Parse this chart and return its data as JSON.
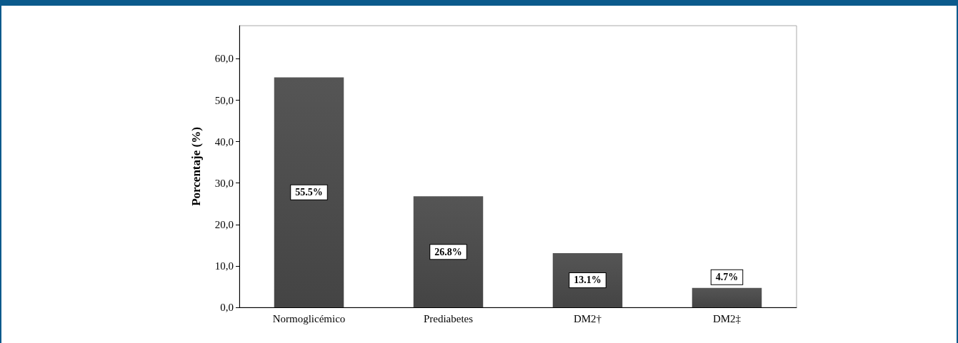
{
  "chart_data": {
    "type": "bar",
    "ylabel": "Porcentaje (%)",
    "categories": [
      "Normoglicémico",
      "Prediabetes",
      "DM2†",
      "DM2‡"
    ],
    "values": [
      55.5,
      26.8,
      13.1,
      4.7
    ],
    "value_labels": [
      "55.5%",
      "26.8%",
      "13.1%",
      "4.7%"
    ],
    "color": "#444444",
    "ylim": [
      0,
      68
    ],
    "yticks": [
      {
        "value": 0,
        "label": "0,0"
      },
      {
        "value": 10,
        "label": "10,0"
      },
      {
        "value": 20,
        "label": "20,0"
      },
      {
        "value": 30,
        "label": "30,0"
      },
      {
        "value": 40,
        "label": "40,0"
      },
      {
        "value": 50,
        "label": "50,0"
      },
      {
        "value": 60,
        "label": "60,0"
      }
    ],
    "grid": false
  }
}
